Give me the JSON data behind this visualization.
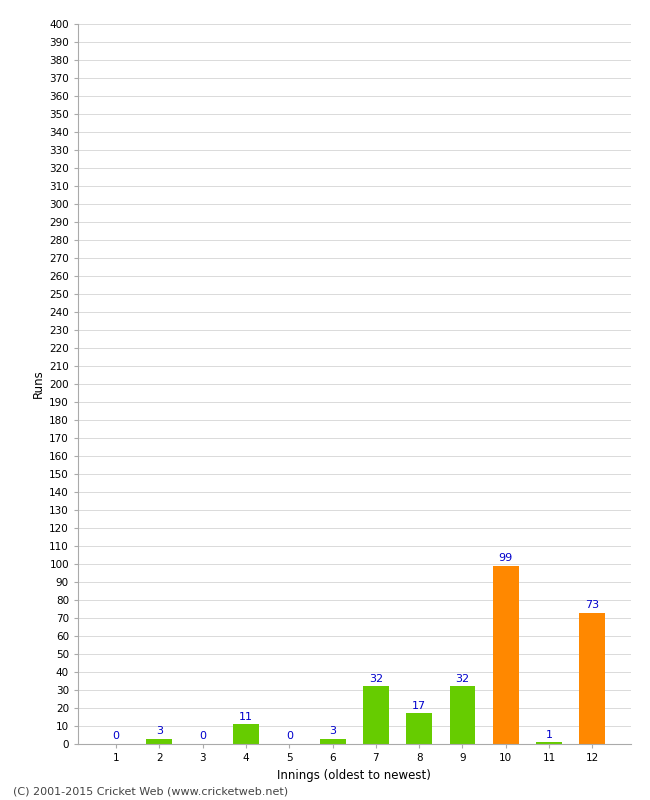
{
  "xlabel": "Innings (oldest to newest)",
  "ylabel": "Runs",
  "categories": [
    "1",
    "2",
    "3",
    "4",
    "5",
    "6",
    "7",
    "8",
    "9",
    "10",
    "11",
    "12"
  ],
  "values": [
    0,
    3,
    0,
    11,
    0,
    3,
    32,
    17,
    32,
    99,
    1,
    73
  ],
  "bar_colors": [
    "#66cc00",
    "#66cc00",
    "#66cc00",
    "#66cc00",
    "#66cc00",
    "#66cc00",
    "#66cc00",
    "#66cc00",
    "#66cc00",
    "#ff8800",
    "#66cc00",
    "#ff8800"
  ],
  "ylim": [
    0,
    400
  ],
  "yticks": [
    0,
    10,
    20,
    30,
    40,
    50,
    60,
    70,
    80,
    90,
    100,
    110,
    120,
    130,
    140,
    150,
    160,
    170,
    180,
    190,
    200,
    210,
    220,
    230,
    240,
    250,
    260,
    270,
    280,
    290,
    300,
    310,
    320,
    330,
    340,
    350,
    360,
    370,
    380,
    390,
    400
  ],
  "label_color": "#0000cc",
  "label_fontsize": 8,
  "axis_label_fontsize": 8.5,
  "tick_fontsize": 7.5,
  "background_color": "#ffffff",
  "grid_color": "#cccccc",
  "footer": "(C) 2001-2015 Cricket Web (www.cricketweb.net)",
  "footer_fontsize": 8
}
